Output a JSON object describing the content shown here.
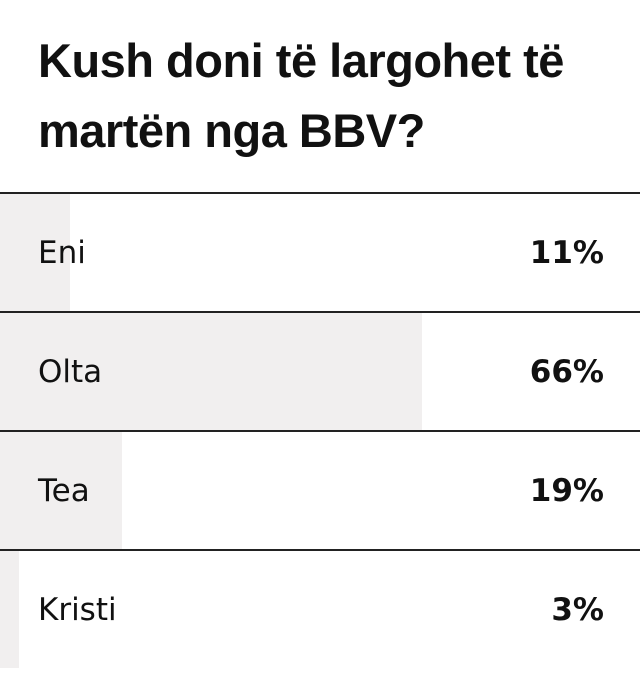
{
  "chart_data": {
    "type": "bar",
    "orientation": "horizontal",
    "title": "Kush doni të largohet të martën nga BBV?",
    "categories": [
      "Eni",
      "Olta",
      "Tea",
      "Kristi"
    ],
    "values": [
      11,
      66,
      19,
      3
    ],
    "value_labels": [
      "11%",
      "66%",
      "19%",
      "3%"
    ],
    "color": "#f1efef",
    "xlim": [
      0,
      100
    ]
  }
}
